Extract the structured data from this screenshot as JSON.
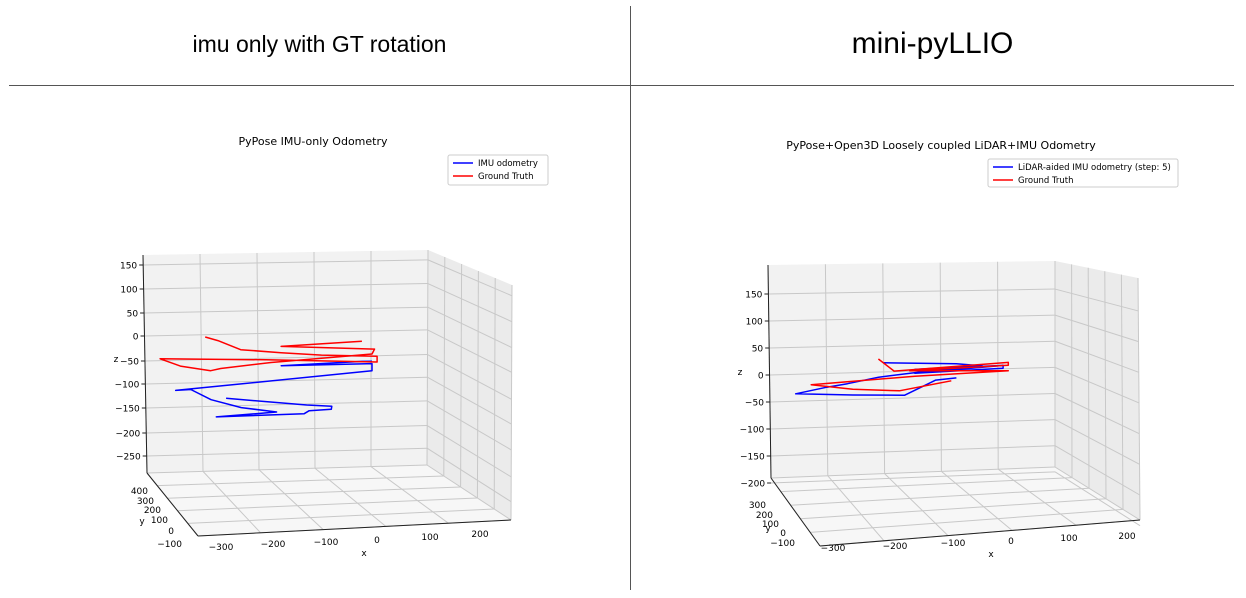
{
  "headers": {
    "left": "imu only with GT rotation",
    "right": "mini-pyLLIO"
  },
  "colors": {
    "imu": "#0000ff",
    "ground_truth": "#ff0000",
    "grid": "#c8c8c8",
    "pane": "#f2f2f2"
  },
  "chart_data": [
    {
      "type": "line",
      "projection": "3d",
      "title": "PyPose IMU-only Odometry",
      "xlabel": "x",
      "ylabel": "y",
      "zlabel": "z",
      "x_ticks": [
        "−300",
        "−200",
        "−100",
        "0",
        "100",
        "200"
      ],
      "y_ticks": [
        "400",
        "300",
        "200",
        "100",
        "0",
        "−100"
      ],
      "z_ticks": [
        "150",
        "100",
        "50",
        "0",
        "−50",
        "−100",
        "−150",
        "−200",
        "−250"
      ],
      "grid": true,
      "legend_position": "top-right",
      "series": [
        {
          "name": "IMU odometry",
          "color": "#0000ff",
          "x": [
            -170,
            -10,
            40,
            39,
            -5,
            -15,
            -190,
            -70,
            -140,
            -200,
            -240,
            -270,
            120,
            120,
            -60,
            100,
            120
          ],
          "y": [
            0,
            0,
            0,
            0,
            0,
            0,
            0,
            0,
            0,
            0,
            0,
            0,
            0,
            0,
            0,
            0,
            0
          ],
          "z": [
            -130,
            -148,
            -152,
            -158,
            -160,
            -166,
            -168,
            -161,
            -150,
            -132,
            -110,
            -111,
            -80,
            -65,
            -65,
            -60,
            -60
          ]
        },
        {
          "name": "Ground Truth",
          "color": "#ff0000",
          "x": [
            -210,
            -185,
            -140,
            -60,
            20,
            130,
            130,
            -90,
            -300,
            -260,
            -200,
            -180,
            -80,
            120,
            125,
            -60,
            100
          ],
          "y": [
            0,
            0,
            0,
            0,
            0,
            0,
            0,
            0,
            0,
            0,
            0,
            0,
            0,
            0,
            0,
            0,
            0
          ],
          "z": [
            -2,
            -10,
            -30,
            -38,
            -45,
            -50,
            -62,
            -52,
            -45,
            -61,
            -72,
            -68,
            -58,
            -45,
            -35,
            -25,
            -18
          ]
        }
      ]
    },
    {
      "type": "line",
      "projection": "3d",
      "title": "PyPose+Open3D Loosely coupled LiDAR+IMU Odometry",
      "xlabel": "x",
      "ylabel": "y",
      "zlabel": "z",
      "x_ticks": [
        "−300",
        "−200",
        "−100",
        "0",
        "100",
        "200"
      ],
      "y_ticks": [
        "300",
        "200",
        "100",
        "0",
        "−100"
      ],
      "z_ticks": [
        "150",
        "100",
        "50",
        "0",
        "−50",
        "−100",
        "−150",
        "−200"
      ],
      "grid": true,
      "legend_position": "top-right",
      "series": [
        {
          "name": "LiDAR-aided IMU odometry (step: 5)",
          "color": "#0000ff",
          "x": [
            -100,
            40,
            90,
            -40,
            130,
            -40,
            130,
            130,
            -20,
            -110,
            -170,
            -210,
            -270,
            -160,
            -60,
            0,
            40
          ],
          "y": [
            0,
            0,
            0,
            0,
            0,
            0,
            0,
            0,
            0,
            0,
            0,
            0,
            0,
            0,
            0,
            0,
            0
          ],
          "z": [
            -5,
            -10,
            -15,
            -18,
            -15,
            -25,
            -20,
            -15,
            -22,
            -30,
            -40,
            -45,
            -55,
            -60,
            -63,
            -38,
            -35
          ]
        },
        {
          "name": "Ground Truth",
          "color": "#ff0000",
          "x": [
            -110,
            -80,
            140,
            140,
            -50,
            140,
            -40,
            -240,
            -160,
            -70,
            30
          ],
          "y": [
            0,
            0,
            0,
            0,
            0,
            0,
            0,
            0,
            0,
            0,
            0
          ],
          "z": [
            2,
            -20,
            -10,
            -15,
            -20,
            -25,
            -30,
            -40,
            -50,
            -55,
            -40
          ]
        }
      ]
    }
  ]
}
